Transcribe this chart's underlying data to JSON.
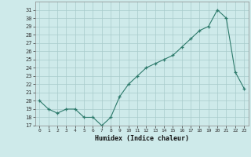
{
  "x_vals": [
    0,
    1,
    2,
    3,
    4,
    5,
    6,
    7,
    8,
    9,
    10,
    11,
    12,
    13,
    14,
    15,
    16,
    17,
    18,
    19,
    20,
    21,
    22,
    23
  ],
  "y_vals": [
    20,
    19,
    18.5,
    19,
    19,
    18,
    18,
    17,
    18,
    20.5,
    22,
    23,
    24,
    24.5,
    25,
    25.5,
    26.5,
    27.5,
    28.5,
    29,
    31,
    30,
    23.5,
    21.5
  ],
  "line_color": "#2d7a6b",
  "bg_color": "#ceeaea",
  "grid_color": "#a8cbcb",
  "xlabel": "Humidex (Indice chaleur)",
  "ylim_min": 17,
  "ylim_max": 32,
  "yticks": [
    17,
    18,
    19,
    20,
    21,
    22,
    23,
    24,
    25,
    26,
    27,
    28,
    29,
    30,
    31
  ],
  "xticks": [
    0,
    1,
    2,
    3,
    4,
    5,
    6,
    7,
    8,
    9,
    10,
    11,
    12,
    13,
    14,
    15,
    16,
    17,
    18,
    19,
    20,
    21,
    22,
    23
  ]
}
